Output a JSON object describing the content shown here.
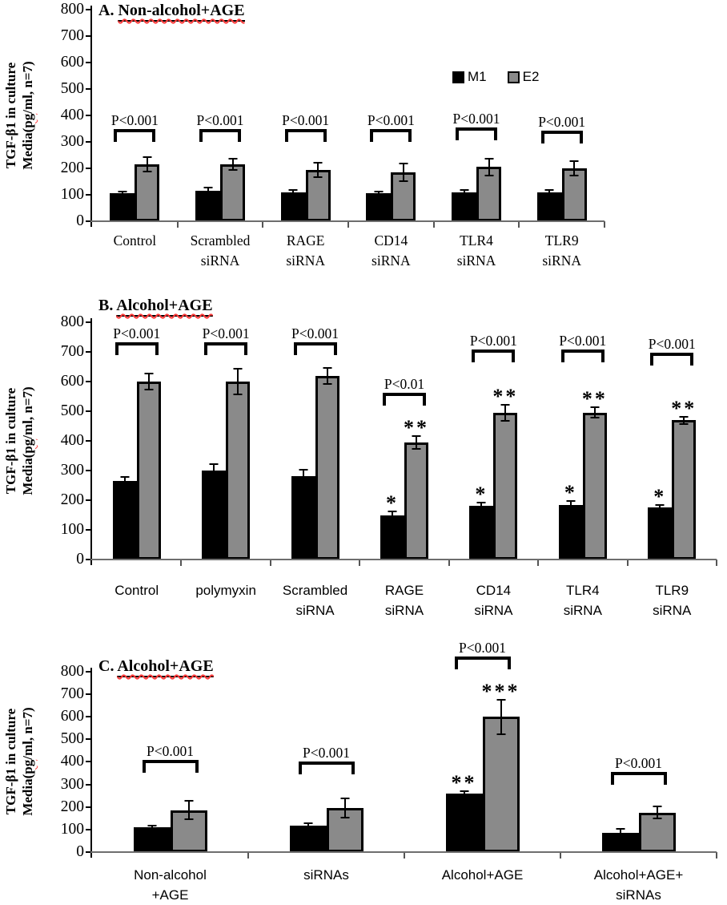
{
  "figure": {
    "y_axis_label_line1": "TGF-β1 in culture",
    "y_axis_label_line2_prefix": "Media(",
    "y_axis_label_line2_wavy": "pg",
    "y_axis_label_line2_suffix": "/ml, n=7)",
    "legend": {
      "m1": "M1",
      "e2": "E2"
    },
    "colors": {
      "m1_bar": "#000000",
      "e2_bar": "#8a8a8a",
      "bar_border": "#000000",
      "spellcheck_wavy": "#ff3b3b",
      "baseline": "#6e6e6e"
    }
  },
  "chart_data": [
    {
      "type": "bar",
      "panel": "A",
      "title_prefix": "A.",
      "title": "Non-alcohol+AGE",
      "ylabel": "TGF-β1 in culture Media(pg/ml, n=7)",
      "ylim": [
        0,
        800
      ],
      "ytick_step": 100,
      "legend_position": "upper-right-inside",
      "categories": [
        [
          "Control"
        ],
        [
          "Scrambled",
          "siRNA"
        ],
        [
          "RAGE",
          "siRNA"
        ],
        [
          "CD14",
          "siRNA"
        ],
        [
          "TLR4",
          "siRNA"
        ],
        [
          "TLR9",
          "siRNA"
        ]
      ],
      "series": [
        {
          "name": "M1",
          "values": [
            105,
            115,
            110,
            105,
            110,
            110
          ],
          "errors": [
            10,
            15,
            10,
            10,
            12,
            12
          ],
          "stars": [
            "",
            "",
            "",
            "",
            "",
            ""
          ]
        },
        {
          "name": "E2",
          "values": [
            215,
            215,
            195,
            185,
            205,
            200
          ],
          "errors": [
            30,
            25,
            30,
            35,
            35,
            30
          ],
          "stars": [
            "",
            "",
            "",
            "",
            "",
            ""
          ]
        }
      ],
      "p_values": [
        "P<0.001",
        "P<0.001",
        "P<0.001",
        "P<0.001",
        "P<0.001",
        "P<0.001"
      ],
      "bracket_heights": [
        300,
        300,
        300,
        300,
        305,
        295
      ]
    },
    {
      "type": "bar",
      "panel": "B",
      "title_prefix": "B.",
      "title": "Alcohol+AGE",
      "ylabel": "TGF-β1 in culture Media(pg/ml, n=7)",
      "ylim": [
        0,
        800
      ],
      "ytick_step": 100,
      "categories": [
        [
          "Control"
        ],
        [
          "polymyxin"
        ],
        [
          "Scrambled",
          "siRNA"
        ],
        [
          "RAGE",
          "siRNA"
        ],
        [
          "CD14",
          "siRNA"
        ],
        [
          "TLR4",
          "siRNA"
        ],
        [
          "TLR9",
          "siRNA"
        ]
      ],
      "series": [
        {
          "name": "M1",
          "values": [
            265,
            300,
            280,
            150,
            180,
            185,
            175
          ],
          "errors": [
            15,
            25,
            25,
            15,
            15,
            15,
            12
          ],
          "stars": [
            "",
            "",
            "",
            "*",
            "*",
            "*",
            "*"
          ]
        },
        {
          "name": "E2",
          "values": [
            600,
            600,
            620,
            395,
            495,
            495,
            470
          ],
          "errors": [
            30,
            45,
            30,
            25,
            30,
            20,
            15
          ],
          "stars": [
            "",
            "",
            "",
            "**",
            "**",
            "**",
            "**"
          ]
        }
      ],
      "p_values": [
        "P<0.001",
        "P<0.001",
        "P<0.001",
        "P<0.01",
        "P<0.001",
        "P<0.001",
        "P<0.001"
      ],
      "bracket_heights": [
        690,
        690,
        690,
        520,
        665,
        665,
        655
      ]
    },
    {
      "type": "bar",
      "panel": "C",
      "title_prefix": "C.",
      "title": "Alcohol+AGE",
      "ylabel": "TGF-β1 in culture Media(pg/ml, n=7)",
      "ylim": [
        0,
        800
      ],
      "ytick_step": 100,
      "categories": [
        [
          "Non-alcohol",
          "+AGE"
        ],
        [
          "siRNAs"
        ],
        [
          "Alcohol+AGE"
        ],
        [
          "Alcohol+AGE+",
          "siRNAs"
        ]
      ],
      "series": [
        {
          "name": "M1",
          "values": [
            110,
            115,
            260,
            85
          ],
          "errors": [
            12,
            15,
            15,
            20
          ],
          "stars": [
            "",
            "",
            "**",
            ""
          ]
        },
        {
          "name": "E2",
          "values": [
            185,
            195,
            600,
            175
          ],
          "errors": [
            45,
            45,
            80,
            30
          ],
          "stars": [
            "",
            "",
            "***",
            ""
          ]
        }
      ],
      "p_values": [
        "P<0.001",
        "P<0.001",
        "P<0.001",
        "P<0.001"
      ],
      "bracket_heights": [
        350,
        345,
        810,
        300
      ]
    }
  ]
}
